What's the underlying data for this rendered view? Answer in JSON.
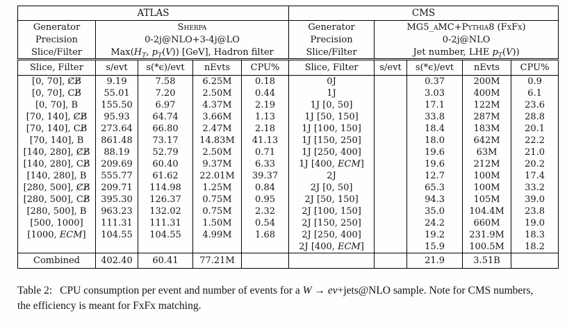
{
  "window": {
    "background": "#fefefe",
    "text_color": "#141414",
    "border_color": "#000000"
  },
  "table": {
    "atlas": {
      "title": "ATLAS",
      "generator_label": "Generator",
      "generator_value": "Sherpa",
      "precision_label": "Precision",
      "precision_value": "0-2j@NLO+3-4j@LO",
      "slice_filter_label": "Slice/Filter",
      "slice_filter_value": [
        {
          "t": "Max("
        },
        {
          "t": "H",
          "i": 1
        },
        {
          "t": "T",
          "i": 1,
          "sub": 1
        },
        {
          "t": ", "
        },
        {
          "t": "p",
          "i": 1
        },
        {
          "t": "T",
          "i": 1,
          "sub": 1
        },
        {
          "t": "("
        },
        {
          "t": "V",
          "i": 1
        },
        {
          "t": ")) [GeV], Hadron filter"
        }
      ],
      "columns": [
        "Slice, Filter",
        "s/evt",
        "s(*ϵ)/evt",
        "nEvts",
        "CPU%"
      ],
      "rows": [
        [
          "[0, 70], C̸B̸",
          "9.19",
          "7.58",
          "6.25M",
          "0.18"
        ],
        [
          "[0, 70], CB̸",
          "55.01",
          "7.20",
          "2.50M",
          "0.44"
        ],
        [
          "[0, 70], B",
          "155.50",
          "6.97",
          "4.37M",
          "2.19"
        ],
        [
          "[70, 140], C̸B̸",
          "95.93",
          "64.74",
          "3.66M",
          "1.13"
        ],
        [
          "[70, 140], CB̸",
          "273.64",
          "66.80",
          "2.47M",
          "2.18"
        ],
        [
          "[70, 140], B",
          "861.48",
          "73.17",
          "14.83M",
          "41.13"
        ],
        [
          "[140, 280], C̸B̸",
          "88.19",
          "52.79",
          "2.50M",
          "0.71"
        ],
        [
          "[140, 280], CB̸",
          "209.69",
          "60.40",
          "9.37M",
          "6.33"
        ],
        [
          "[140, 280], B",
          "555.77",
          "61.62",
          "22.01M",
          "39.37"
        ],
        [
          "[280, 500], C̸B̸",
          "209.71",
          "114.98",
          "1.25M",
          "0.84"
        ],
        [
          "[280, 500], CB̸",
          "395.30",
          "126.37",
          "0.75M",
          "0.95"
        ],
        [
          "[280, 500], B",
          "963.23",
          "132.02",
          "0.75M",
          "2.32"
        ],
        [
          "[500, 1000]",
          "111.31",
          "111.31",
          "1.50M",
          "0.54"
        ],
        [
          [
            {
              "t": "[1000, "
            },
            {
              "t": "ECM",
              "i": 1
            },
            {
              "t": "]"
            }
          ],
          "104.55",
          "104.55",
          "4.99M",
          "1.68"
        ],
        [
          "",
          "",
          "",
          "",
          ""
        ]
      ],
      "combined": [
        "Combined",
        "402.40",
        "60.41",
        "77.21M",
        ""
      ]
    },
    "cms": {
      "title": "CMS",
      "generator_label": "Generator",
      "generator_value": "MG5_aMC+Pythia8 (FxFx)",
      "precision_label": "Precision",
      "precision_value": "0-2j@NLO",
      "slice_filter_label": "Slice/Filter",
      "slice_filter_value": [
        {
          "t": "Jet number, LHE "
        },
        {
          "t": "p",
          "i": 1
        },
        {
          "t": "T",
          "i": 1,
          "sub": 1
        },
        {
          "t": "("
        },
        {
          "t": "V",
          "i": 1
        },
        {
          "t": "))"
        }
      ],
      "columns": [
        "Slice, Filter",
        "s/evt",
        "s(*ϵ)/evt",
        "nEvts",
        "CPU%"
      ],
      "rows": [
        [
          "0J",
          "",
          "0.37",
          "200M",
          "0.9"
        ],
        [
          "1J",
          "",
          "3.03",
          "400M",
          "6.1"
        ],
        [
          "1J [0, 50]",
          "",
          "17.1",
          "122M",
          "23.6"
        ],
        [
          "1J [50, 150]",
          "",
          "33.8",
          "287M",
          "28.8"
        ],
        [
          "1J [100, 150]",
          "",
          "18.4",
          "183M",
          "20.1"
        ],
        [
          "1J [150, 250]",
          "",
          "18.0",
          "642M",
          "22.2"
        ],
        [
          "1J [250, 400]",
          "",
          "19.6",
          "63M",
          "21.0"
        ],
        [
          [
            {
              "t": "1J [400, "
            },
            {
              "t": "ECM",
              "i": 1
            },
            {
              "t": "]"
            }
          ],
          "",
          "19.6",
          "212M",
          "20.2"
        ],
        [
          "2J",
          "",
          "12.7",
          "100M",
          "17.4"
        ],
        [
          "2J [0, 50]",
          "",
          "65.3",
          "100M",
          "33.2"
        ],
        [
          "2J [50, 150]",
          "",
          "94.3",
          "105M",
          "39.0"
        ],
        [
          "2J [100, 150]",
          "",
          "35.0",
          "104.4M",
          "23.8"
        ],
        [
          "2J [150, 250]",
          "",
          "24.2",
          "660M",
          "19.0"
        ],
        [
          "2J [250, 400]",
          "",
          "19.2",
          "231.9M",
          "18.3"
        ],
        [
          [
            {
              "t": "2J [400, "
            },
            {
              "t": "ECM",
              "i": 1
            },
            {
              "t": "]"
            }
          ],
          "",
          "15.9",
          "100.5M",
          "18.2"
        ]
      ],
      "combined": [
        "",
        "",
        "21.9",
        "3.51B",
        ""
      ]
    }
  },
  "caption": {
    "label": "Table 2:",
    "segments": [
      {
        "t": "CPU consumption per event and number of events for a "
      },
      {
        "t": "W",
        "i": 1
      },
      {
        "t": " → "
      },
      {
        "t": "eν",
        "i": 1
      },
      {
        "t": "+jets@NLO sample. Note for CMS numbers, the efficiency is meant for FxFx matching."
      }
    ]
  }
}
